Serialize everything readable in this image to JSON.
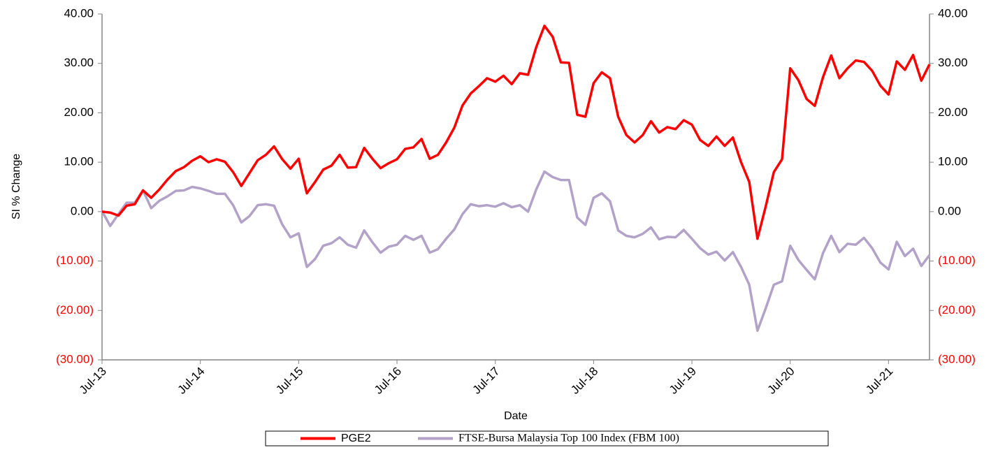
{
  "chart_data": {
    "type": "line",
    "y_label": "SI % Change",
    "x_label": "Date",
    "categories": [
      "Jul-13",
      null,
      null,
      null,
      null,
      null,
      null,
      null,
      null,
      null,
      null,
      null,
      "Jul-14",
      null,
      null,
      null,
      null,
      null,
      null,
      null,
      null,
      null,
      null,
      null,
      "Jul-15",
      null,
      null,
      null,
      null,
      null,
      null,
      null,
      null,
      null,
      null,
      null,
      "Jul-16",
      null,
      null,
      null,
      null,
      null,
      null,
      null,
      null,
      null,
      null,
      null,
      "Jul-17",
      null,
      null,
      null,
      null,
      null,
      null,
      null,
      null,
      null,
      null,
      null,
      "Jul-18",
      null,
      null,
      null,
      null,
      null,
      null,
      null,
      null,
      null,
      null,
      null,
      "Jul-19",
      null,
      null,
      null,
      null,
      null,
      null,
      null,
      null,
      null,
      null,
      null,
      "Jul-20",
      null,
      null,
      null,
      null,
      null,
      null,
      null,
      null,
      null,
      null,
      null,
      "Jul-21",
      null,
      null,
      null,
      null,
      null
    ],
    "series": [
      {
        "name": "PGE2",
        "color": "#ff0000",
        "values": [
          0,
          -0.2,
          -0.8,
          1.2,
          1.5,
          4.3,
          2.8,
          4.5,
          6.5,
          8.2,
          9.0,
          10.3,
          11.2,
          10.0,
          10.6,
          10.1,
          8.0,
          5.2,
          7.8,
          10.4,
          11.5,
          13.2,
          10.6,
          8.7,
          10.7,
          3.7,
          6.0,
          8.5,
          9.3,
          11.5,
          8.9,
          9.0,
          12.9,
          10.7,
          8.8,
          9.8,
          10.6,
          12.7,
          13.0,
          14.7,
          10.7,
          11.5,
          14.0,
          17.0,
          21.5,
          23.9,
          25.4,
          27.0,
          26.3,
          27.5,
          25.8,
          28.0,
          27.7,
          33.3,
          37.6,
          35.4,
          30.2,
          30.1,
          19.6,
          19.2,
          26.0,
          28.2,
          27.0,
          19.2,
          15.5,
          14.0,
          15.5,
          18.3,
          16.0,
          17.1,
          16.7,
          18.5,
          17.6,
          14.5,
          13.3,
          15.2,
          13.3,
          15.0,
          10.0,
          6.0,
          -5.5,
          1.0,
          8.0,
          10.6,
          29.0,
          26.6,
          22.8,
          21.4,
          27.2,
          31.6,
          27.0,
          29.0,
          30.6,
          30.3,
          28.5,
          25.5,
          23.7,
          30.4,
          28.7,
          31.7,
          26.5,
          29.8
        ]
      },
      {
        "name": "FTSE-Bursa Malaysia Top 100 Index (FBM 100)",
        "color": "#b3a2c7",
        "values": [
          0.1,
          -2.9,
          -0.5,
          1.8,
          1.8,
          4.3,
          0.7,
          2.2,
          3.1,
          4.2,
          4.3,
          5.0,
          4.7,
          4.2,
          3.6,
          3.6,
          1.3,
          -2.2,
          -0.9,
          1.3,
          1.5,
          1.2,
          -2.6,
          -5.2,
          -4.4,
          -11.2,
          -9.6,
          -6.9,
          -6.4,
          -5.2,
          -6.7,
          -7.3,
          -3.8,
          -6.2,
          -8.3,
          -7.1,
          -6.7,
          -4.9,
          -5.7,
          -4.9,
          -8.3,
          -7.6,
          -5.5,
          -3.6,
          -0.5,
          1.5,
          1.1,
          1.3,
          1.0,
          1.7,
          0.9,
          1.3,
          0,
          4.5,
          8.1,
          7.0,
          6.4,
          6.4,
          -1.2,
          -2.7,
          2.8,
          3.7,
          2.1,
          -3.8,
          -4.9,
          -5.2,
          -4.5,
          -3.2,
          -5.6,
          -5.1,
          -5.2,
          -3.7,
          -5.5,
          -7.4,
          -8.7,
          -8.1,
          -9.9,
          -8.2,
          -11.2,
          -14.8,
          -24.1,
          -19.6,
          -14.8,
          -14.1,
          -6.9,
          -9.8,
          -11.8,
          -13.7,
          -8.4,
          -4.9,
          -8.2,
          -6.5,
          -6.7,
          -5.3,
          -7.4,
          -10.3,
          -11.7,
          -6.1,
          -9.0,
          -7.5,
          -11.0,
          -8.8
        ]
      }
    ],
    "ylim": [
      -30,
      40
    ],
    "yticks": [
      {
        "value": -30,
        "label": "(30.00)"
      },
      {
        "value": -20,
        "label": "(20.00)"
      },
      {
        "value": -10,
        "label": "(10.00)"
      },
      {
        "value": 0,
        "label": "0.00"
      },
      {
        "value": 10,
        "label": "10.00"
      },
      {
        "value": 20,
        "label": "20.00"
      },
      {
        "value": 30,
        "label": "30.00"
      },
      {
        "value": 40,
        "label": "40.00"
      }
    ],
    "negative_tick_color": "#ff0000",
    "mirror_y_axis": true,
    "grid": false,
    "legend": "bottom"
  }
}
